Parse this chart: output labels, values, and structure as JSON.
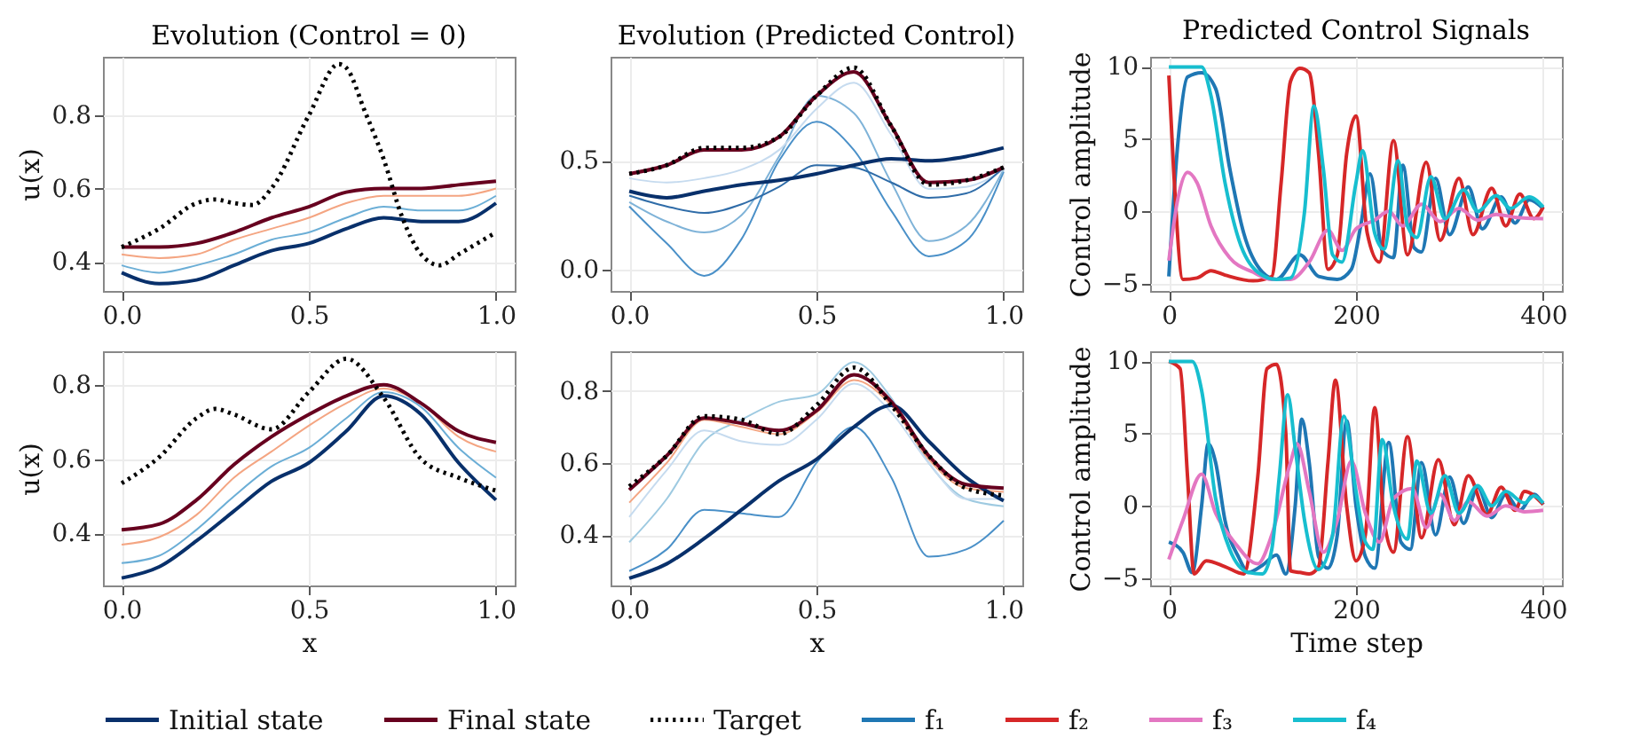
{
  "chart_data": [
    {
      "type": "line",
      "title": "Evolution (Control = 0)",
      "ylabel": "u(x)",
      "grid": true,
      "legend": "bottom",
      "xlim": [
        -0.05,
        1.05
      ],
      "xticks": [
        {
          "value": 0,
          "label": "0.0"
        },
        {
          "value": 0.5,
          "label": "0.5"
        },
        {
          "value": 1,
          "label": "1.0"
        }
      ],
      "ylim": [
        0.32,
        0.96
      ],
      "yticks": [
        0.4,
        0.6,
        0.8
      ],
      "x": [
        0,
        0.1,
        0.2,
        0.3,
        0.4,
        0.5,
        0.6,
        0.7,
        0.8,
        0.9,
        1.0
      ],
      "series": [
        {
          "color": "#6baed6",
          "values": [
            0.39,
            0.37,
            0.39,
            0.42,
            0.46,
            0.48,
            0.52,
            0.55,
            0.54,
            0.54,
            0.58
          ]
        },
        {
          "color": "#f4a582",
          "values": [
            0.42,
            0.41,
            0.42,
            0.46,
            0.49,
            0.52,
            0.56,
            0.58,
            0.58,
            0.58,
            0.6
          ]
        },
        {
          "name": "Initial state",
          "color": "#08306b",
          "values": [
            0.37,
            0.34,
            0.35,
            0.39,
            0.43,
            0.45,
            0.49,
            0.52,
            0.51,
            0.51,
            0.56
          ]
        },
        {
          "name": "Final state",
          "color": "#67001f",
          "values": [
            0.44,
            0.44,
            0.45,
            0.48,
            0.52,
            0.55,
            0.59,
            0.6,
            0.6,
            0.61,
            0.62
          ]
        },
        {
          "name": "Target",
          "color": "#000000",
          "line_style": "dotted",
          "x": [
            0,
            0.1,
            0.2,
            0.25,
            0.3,
            0.35,
            0.4,
            0.5,
            0.58,
            0.6,
            0.65,
            0.7,
            0.75,
            0.8,
            0.85,
            0.9,
            1.0
          ],
          "values": [
            0.44,
            0.49,
            0.56,
            0.57,
            0.56,
            0.555,
            0.6,
            0.8,
            0.94,
            0.93,
            0.81,
            0.68,
            0.52,
            0.42,
            0.39,
            0.42,
            0.48
          ]
        }
      ]
    },
    {
      "type": "line",
      "title": "Evolution (Predicted Control)",
      "grid": true,
      "legend": "bottom",
      "xlim": [
        -0.05,
        1.05
      ],
      "xticks": [
        {
          "value": 0,
          "label": "0.0"
        },
        {
          "value": 0.5,
          "label": "0.5"
        },
        {
          "value": 1,
          "label": "1.0"
        }
      ],
      "ylim": [
        -0.1,
        0.98
      ],
      "yticks": [
        {
          "value": 0,
          "label": "0.0"
        },
        0.5
      ],
      "x": [
        0,
        0.1,
        0.2,
        0.3,
        0.4,
        0.5,
        0.6,
        0.7,
        0.8,
        0.9,
        1.0
      ],
      "series": [
        {
          "color": "#4a90c8",
          "values": [
            0.29,
            0.12,
            -0.03,
            0.14,
            0.5,
            0.68,
            0.55,
            0.27,
            0.06,
            0.13,
            0.45
          ]
        },
        {
          "color": "#7fb3d8",
          "values": [
            0.31,
            0.22,
            0.17,
            0.25,
            0.52,
            0.8,
            0.72,
            0.4,
            0.13,
            0.2,
            0.46
          ]
        },
        {
          "color": "#c6dbef",
          "values": [
            0.42,
            0.4,
            0.42,
            0.46,
            0.55,
            0.74,
            0.86,
            0.62,
            0.37,
            0.38,
            0.46
          ]
        },
        {
          "color": "#2f6ca8",
          "values": [
            0.34,
            0.29,
            0.26,
            0.3,
            0.38,
            0.48,
            0.47,
            0.4,
            0.33,
            0.35,
            0.47
          ]
        },
        {
          "name": "Initial state",
          "color": "#08306b",
          "values": [
            0.36,
            0.33,
            0.36,
            0.39,
            0.41,
            0.44,
            0.48,
            0.51,
            0.5,
            0.52,
            0.56
          ]
        },
        {
          "name": "Final state",
          "color": "#67001f",
          "values": [
            0.44,
            0.48,
            0.55,
            0.55,
            0.61,
            0.8,
            0.91,
            0.66,
            0.4,
            0.41,
            0.47
          ]
        },
        {
          "name": "Target",
          "color": "#000000",
          "line_style": "dotted",
          "values": [
            0.44,
            0.48,
            0.56,
            0.56,
            0.61,
            0.8,
            0.93,
            0.66,
            0.39,
            0.41,
            0.47
          ]
        }
      ]
    },
    {
      "type": "line",
      "title": "Predicted Control Signals",
      "ylabel": "Control amplitude",
      "grid": true,
      "legend": "bottom",
      "xlim": [
        -20,
        420
      ],
      "xticks": [
        0,
        200,
        400
      ],
      "ylim": [
        -5.5,
        10.7
      ],
      "yticks": [
        -5,
        0,
        5,
        10
      ],
      "series": [
        {
          "name": "f₁",
          "color": "#1f77b4",
          "x": [
            0,
            10,
            20,
            35,
            50,
            65,
            80,
            100,
            115,
            140,
            160,
            180,
            195,
            205,
            215,
            228,
            240,
            250,
            262,
            270,
            285,
            300,
            320,
            335,
            355,
            370,
            385,
            400
          ],
          "values": [
            -4.5,
            5,
            9.3,
            9.6,
            8.5,
            3,
            -1.5,
            -4.2,
            -4.7,
            -3,
            -4.5,
            -4.7,
            -4,
            -1,
            2.6,
            -2.7,
            -3.2,
            3.2,
            -2.5,
            -2.8,
            2.3,
            -1.6,
            1.7,
            -1.2,
            1.0,
            -0.8,
            0.8,
            0.2
          ]
        },
        {
          "name": "f₂",
          "color": "#d62728",
          "x": [
            0,
            5,
            15,
            30,
            45,
            60,
            90,
            110,
            120,
            130,
            140,
            150,
            160,
            170,
            180,
            190,
            200,
            212,
            225,
            240,
            255,
            275,
            290,
            310,
            325,
            345,
            360,
            375,
            390,
            400
          ],
          "values": [
            9.4,
            3,
            -4.7,
            -4.6,
            -4.1,
            -4.4,
            -4.8,
            -4.5,
            2,
            9,
            9.9,
            9.6,
            4,
            -4,
            -3,
            4,
            6.6,
            -1.5,
            -3.5,
            4.9,
            -3,
            3.4,
            -2,
            2.3,
            -1.6,
            1.6,
            -1,
            1.2,
            -0.5,
            0.3
          ]
        },
        {
          "name": "f₃",
          "color": "#e377c2",
          "x": [
            0,
            10,
            20,
            30,
            45,
            65,
            90,
            110,
            130,
            150,
            170,
            185,
            200,
            220,
            235,
            250,
            270,
            290,
            310,
            330,
            350,
            370,
            400
          ],
          "values": [
            -3.4,
            1,
            2.7,
            2,
            -1,
            -3.2,
            -4.2,
            -4.7,
            -4.7,
            -3.5,
            -1.3,
            -2.7,
            -1.2,
            -0.6,
            0,
            -1,
            0.5,
            -0.7,
            0.2,
            -0.6,
            -0.2,
            -0.4,
            -0.5
          ]
        },
        {
          "name": "f₄",
          "color": "#17becf",
          "x": [
            0,
            35,
            45,
            60,
            75,
            95,
            115,
            130,
            145,
            155,
            165,
            175,
            185,
            200,
            207,
            220,
            230,
            245,
            255,
            265,
            280,
            295,
            315,
            330,
            350,
            365,
            385,
            400
          ],
          "values": [
            10,
            10,
            8,
            2,
            -2,
            -4.2,
            -4.7,
            -4.6,
            0,
            7.3,
            3,
            -3,
            -3.5,
            2,
            4.2,
            -1.5,
            -2.6,
            3.5,
            -1,
            -1.8,
            2.4,
            -0.5,
            1.5,
            0,
            1.1,
            0.2,
            1.0,
            0.3
          ]
        }
      ]
    },
    {
      "type": "line",
      "xlabel": "x",
      "ylabel": "u(x)",
      "grid": true,
      "legend": "bottom",
      "xlim": [
        -0.05,
        1.05
      ],
      "xticks": [
        {
          "value": 0,
          "label": "0.0"
        },
        {
          "value": 0.5,
          "label": "0.5"
        },
        {
          "value": 1,
          "label": "1.0"
        }
      ],
      "ylim": [
        0.26,
        0.89
      ],
      "yticks": [
        0.4,
        0.6,
        0.8
      ],
      "x": [
        0,
        0.1,
        0.2,
        0.3,
        0.4,
        0.5,
        0.6,
        0.7,
        0.8,
        0.9,
        1.0
      ],
      "series": [
        {
          "color": "#6baed6",
          "values": [
            0.32,
            0.34,
            0.41,
            0.5,
            0.58,
            0.63,
            0.71,
            0.78,
            0.74,
            0.63,
            0.55
          ]
        },
        {
          "color": "#f4a582",
          "values": [
            0.37,
            0.39,
            0.45,
            0.55,
            0.62,
            0.69,
            0.75,
            0.79,
            0.75,
            0.66,
            0.62
          ]
        },
        {
          "name": "Initial state",
          "color": "#08306b",
          "values": [
            0.28,
            0.31,
            0.38,
            0.46,
            0.54,
            0.59,
            0.675,
            0.77,
            0.72,
            0.59,
            0.49
          ]
        },
        {
          "name": "Final state",
          "color": "#67001f",
          "values": [
            0.41,
            0.425,
            0.49,
            0.585,
            0.66,
            0.72,
            0.77,
            0.8,
            0.75,
            0.675,
            0.645
          ]
        },
        {
          "name": "Target",
          "color": "#000000",
          "line_style": "dotted",
          "x": [
            0,
            0.1,
            0.2,
            0.25,
            0.3,
            0.4,
            0.5,
            0.6,
            0.7,
            0.8,
            0.9,
            1.0
          ],
          "values": [
            0.535,
            0.605,
            0.71,
            0.735,
            0.72,
            0.68,
            0.78,
            0.87,
            0.765,
            0.6,
            0.55,
            0.515
          ]
        }
      ]
    },
    {
      "type": "line",
      "xlabel": "x",
      "grid": true,
      "legend": "bottom",
      "xlim": [
        -0.05,
        1.05
      ],
      "xticks": [
        {
          "value": 0,
          "label": "0.0"
        },
        {
          "value": 0.5,
          "label": "0.5"
        },
        {
          "value": 1,
          "label": "1.0"
        }
      ],
      "ylim": [
        0.26,
        0.91
      ],
      "yticks": [
        0.4,
        0.6,
        0.8
      ],
      "x": [
        0,
        0.1,
        0.2,
        0.3,
        0.4,
        0.5,
        0.6,
        0.7,
        0.8,
        0.9,
        1.0
      ],
      "series": [
        {
          "color": "#4a90c8",
          "values": [
            0.3,
            0.36,
            0.47,
            0.46,
            0.45,
            0.6,
            0.7,
            0.56,
            0.34,
            0.36,
            0.44
          ]
        },
        {
          "color": "#9ecae1",
          "values": [
            0.38,
            0.5,
            0.66,
            0.72,
            0.77,
            0.79,
            0.88,
            0.78,
            0.6,
            0.5,
            0.48
          ]
        },
        {
          "color": "#c6dbef",
          "values": [
            0.45,
            0.58,
            0.69,
            0.66,
            0.65,
            0.72,
            0.82,
            0.74,
            0.6,
            0.5,
            0.5
          ]
        },
        {
          "color": "#f4a582",
          "values": [
            0.49,
            0.6,
            0.72,
            0.7,
            0.68,
            0.74,
            0.83,
            0.76,
            0.61,
            0.53,
            0.52
          ]
        },
        {
          "name": "Initial state",
          "color": "#08306b",
          "values": [
            0.28,
            0.32,
            0.39,
            0.47,
            0.55,
            0.61,
            0.7,
            0.76,
            0.66,
            0.56,
            0.495
          ]
        },
        {
          "name": "Final state",
          "color": "#67001f",
          "values": [
            0.525,
            0.62,
            0.725,
            0.71,
            0.69,
            0.745,
            0.845,
            0.77,
            0.62,
            0.54,
            0.53
          ]
        },
        {
          "name": "Target",
          "color": "#000000",
          "line_style": "dotted",
          "values": [
            0.535,
            0.62,
            0.73,
            0.72,
            0.68,
            0.76,
            0.865,
            0.76,
            0.62,
            0.53,
            0.51
          ]
        }
      ]
    },
    {
      "type": "line",
      "xlabel": "Time step",
      "ylabel": "Control amplitude",
      "grid": true,
      "legend": "bottom",
      "xlim": [
        -20,
        420
      ],
      "xticks": [
        0,
        200,
        400
      ],
      "ylim": [
        -5.5,
        10.7
      ],
      "yticks": [
        -5,
        0,
        5,
        10
      ],
      "series": [
        {
          "name": "f₁",
          "color": "#1f77b4",
          "x": [
            0,
            15,
            25,
            35,
            42,
            50,
            60,
            75,
            85,
            100,
            115,
            125,
            135,
            142,
            150,
            160,
            170,
            180,
            190,
            200,
            210,
            220,
            235,
            248,
            258,
            270,
            285,
            300,
            315,
            330,
            345,
            360,
            375,
            390,
            400
          ],
          "values": [
            -2.5,
            -3.2,
            -4.6,
            0,
            4.3,
            3,
            -1,
            -3.6,
            -4.6,
            -4.1,
            -3.4,
            -4.7,
            0,
            6,
            3,
            -3.5,
            -4.3,
            -2,
            5.9,
            0,
            -3.5,
            -4.3,
            4.4,
            -2.5,
            -3,
            3.0,
            -2,
            2.0,
            -1.2,
            1.3,
            -0.8,
            0.8,
            -0.3,
            0.8,
            0.1
          ]
        },
        {
          "name": "f₂",
          "color": "#d62728",
          "x": [
            0,
            12,
            20,
            27,
            40,
            60,
            80,
            95,
            105,
            115,
            125,
            130,
            140,
            150,
            160,
            170,
            178,
            190,
            200,
            210,
            220,
            230,
            240,
            255,
            270,
            288,
            305,
            320,
            340,
            355,
            370,
            380,
            400
          ],
          "values": [
            10,
            9.5,
            2,
            -4.7,
            -3.8,
            -4.2,
            -4.7,
            2,
            9.5,
            9.8,
            5,
            -4.5,
            -4.6,
            -4.7,
            -4.2,
            3,
            8.7,
            0,
            -3.8,
            -2,
            6.8,
            -1,
            -3.2,
            4.8,
            -2.2,
            3.2,
            -1.3,
            2.1,
            -0.6,
            1.3,
            -0.3,
            1.0,
            0.1
          ]
        },
        {
          "name": "f₃",
          "color": "#e377c2",
          "x": [
            0,
            15,
            35,
            50,
            70,
            95,
            110,
            130,
            137,
            150,
            165,
            180,
            195,
            210,
            225,
            240,
            260,
            275,
            290,
            305,
            320,
            340,
            360,
            380,
            400
          ],
          "values": [
            -3.7,
            -1,
            2.2,
            -0.5,
            -2.5,
            -4.0,
            -2,
            3,
            4.3,
            1,
            -3.2,
            -1,
            3.1,
            -0.5,
            -2.5,
            0.5,
            1.2,
            -1.5,
            0.8,
            -1,
            0.3,
            -0.7,
            0,
            -0.4,
            -0.3
          ]
        },
        {
          "name": "f₄",
          "color": "#17becf",
          "x": [
            0,
            25,
            35,
            50,
            65,
            85,
            100,
            110,
            118,
            127,
            135,
            145,
            160,
            175,
            187,
            200,
            210,
            218,
            228,
            240,
            255,
            265,
            280,
            295,
            310,
            330,
            345,
            360,
            380,
            390,
            400
          ],
          "values": [
            10,
            10,
            8,
            0.5,
            -3,
            -4.6,
            -4.7,
            -3,
            2,
            7.7,
            4,
            -1,
            -4.4,
            -2,
            6.2,
            1,
            -2.5,
            -3,
            4.6,
            0,
            -2.3,
            3.1,
            -0.5,
            2.1,
            -0.5,
            1.4,
            0,
            1.0,
            0.2,
            0.7,
            0.2
          ]
        }
      ]
    }
  ]
}
